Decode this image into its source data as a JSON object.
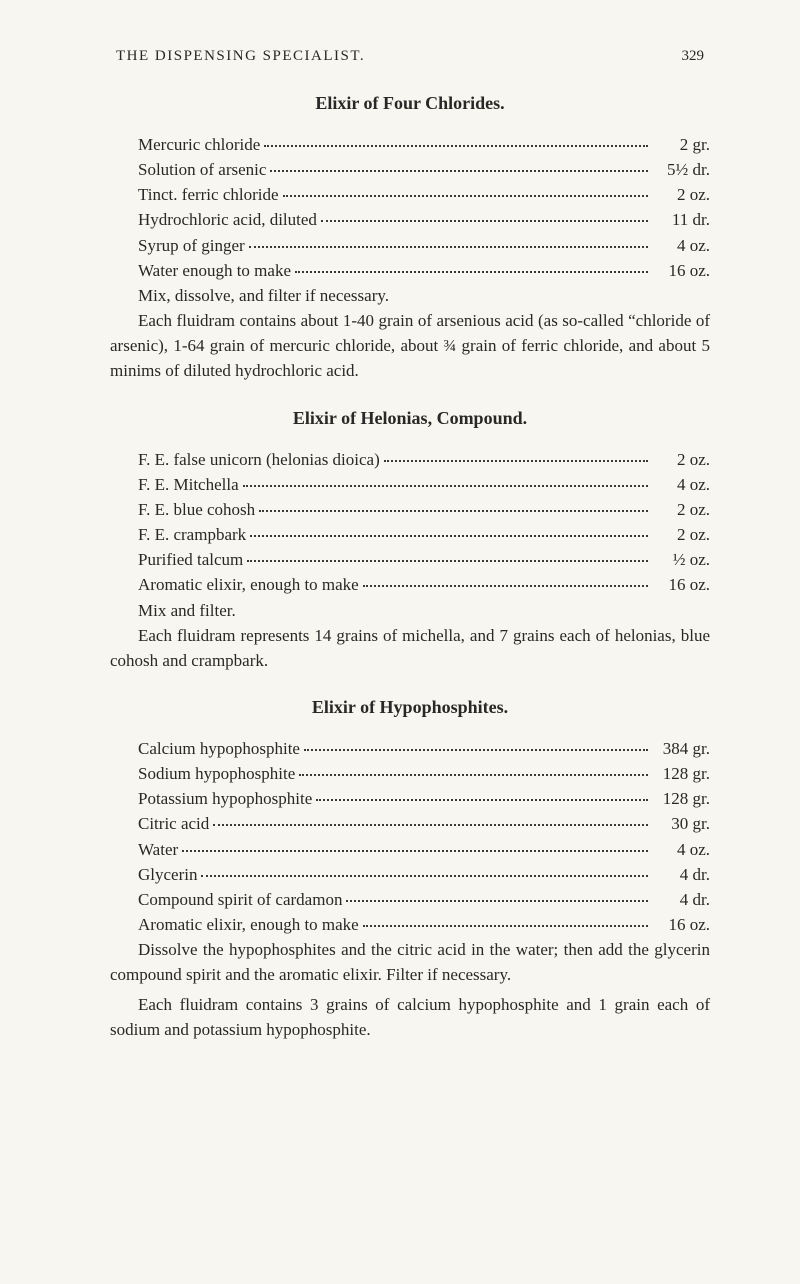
{
  "page": {
    "running_head": "THE DISPENSING SPECIALIST.",
    "page_number": "329"
  },
  "sections": [
    {
      "title": "Elixir of Four Chlorides.",
      "recipe": [
        {
          "ingredient": "Mercuric chloride",
          "amount": "2 gr."
        },
        {
          "ingredient": "Solution of arsenic",
          "amount": "5½ dr."
        },
        {
          "ingredient": "Tinct. ferric chloride",
          "amount": "2 oz."
        },
        {
          "ingredient": "Hydrochloric acid, diluted",
          "amount": "11 dr."
        },
        {
          "ingredient": "Syrup of ginger",
          "amount": "4 oz."
        },
        {
          "ingredient": "Water enough to make",
          "amount": "16 oz."
        }
      ],
      "instruction": "Mix, dissolve, and filter if necessary.",
      "paragraphs": [
        "Each fluidram contains about 1-40 grain of arsenious acid (as so-called “chloride of arsenic), 1-64 grain of mercuric chloride, about ¾ grain of ferric chloride, and about 5 minims of diluted hydrochloric acid."
      ]
    },
    {
      "title": "Elixir of Helonias, Compound.",
      "recipe": [
        {
          "ingredient": "F. E. false unicorn (helonias dioica)",
          "amount": "2 oz."
        },
        {
          "ingredient": "F. E. Mitchella",
          "amount": "4 oz."
        },
        {
          "ingredient": "F. E. blue cohosh",
          "amount": "2 oz."
        },
        {
          "ingredient": "F. E. crampbark",
          "amount": "2 oz."
        },
        {
          "ingredient": "Purified talcum",
          "amount": "½ oz."
        },
        {
          "ingredient": "Aromatic elixir, enough to make",
          "amount": "16 oz."
        }
      ],
      "instruction": "Mix and filter.",
      "paragraphs": [
        "Each fluidram represents 14 grains of michella, and 7 grains each of helonias, blue cohosh and crampbark."
      ]
    },
    {
      "title": "Elixir of Hypophosphites.",
      "recipe": [
        {
          "ingredient": "Calcium hypophosphite",
          "amount": "384 gr."
        },
        {
          "ingredient": "Sodium hypophosphite",
          "amount": "128 gr."
        },
        {
          "ingredient": "Potassium hypophosphite",
          "amount": "128 gr."
        },
        {
          "ingredient": "Citric acid",
          "amount": "30 gr."
        },
        {
          "ingredient": "Water",
          "amount": "4 oz."
        },
        {
          "ingredient": "Glycerin",
          "amount": "4 dr."
        },
        {
          "ingredient": "Compound spirit of cardamon",
          "amount": "4 dr."
        },
        {
          "ingredient": "Aromatic elixir, enough to make",
          "amount": "16 oz."
        }
      ],
      "instruction": "",
      "paragraphs": [
        "Dissolve the hypophosphites and the citric acid in the water; then add the glycerin compound spirit and the aromatic elixir. Filter if necessary.",
        "Each fluidram contains 3 grains of calcium hypophosphite and 1 grain each of sodium and potassium hypophosphite."
      ]
    }
  ],
  "colors": {
    "background": "#f8f6f0",
    "text": "#2a2826",
    "dots": "#3a3834"
  },
  "typography": {
    "body_fontsize": 17,
    "title_fontsize": 18,
    "header_fontsize": 15
  }
}
